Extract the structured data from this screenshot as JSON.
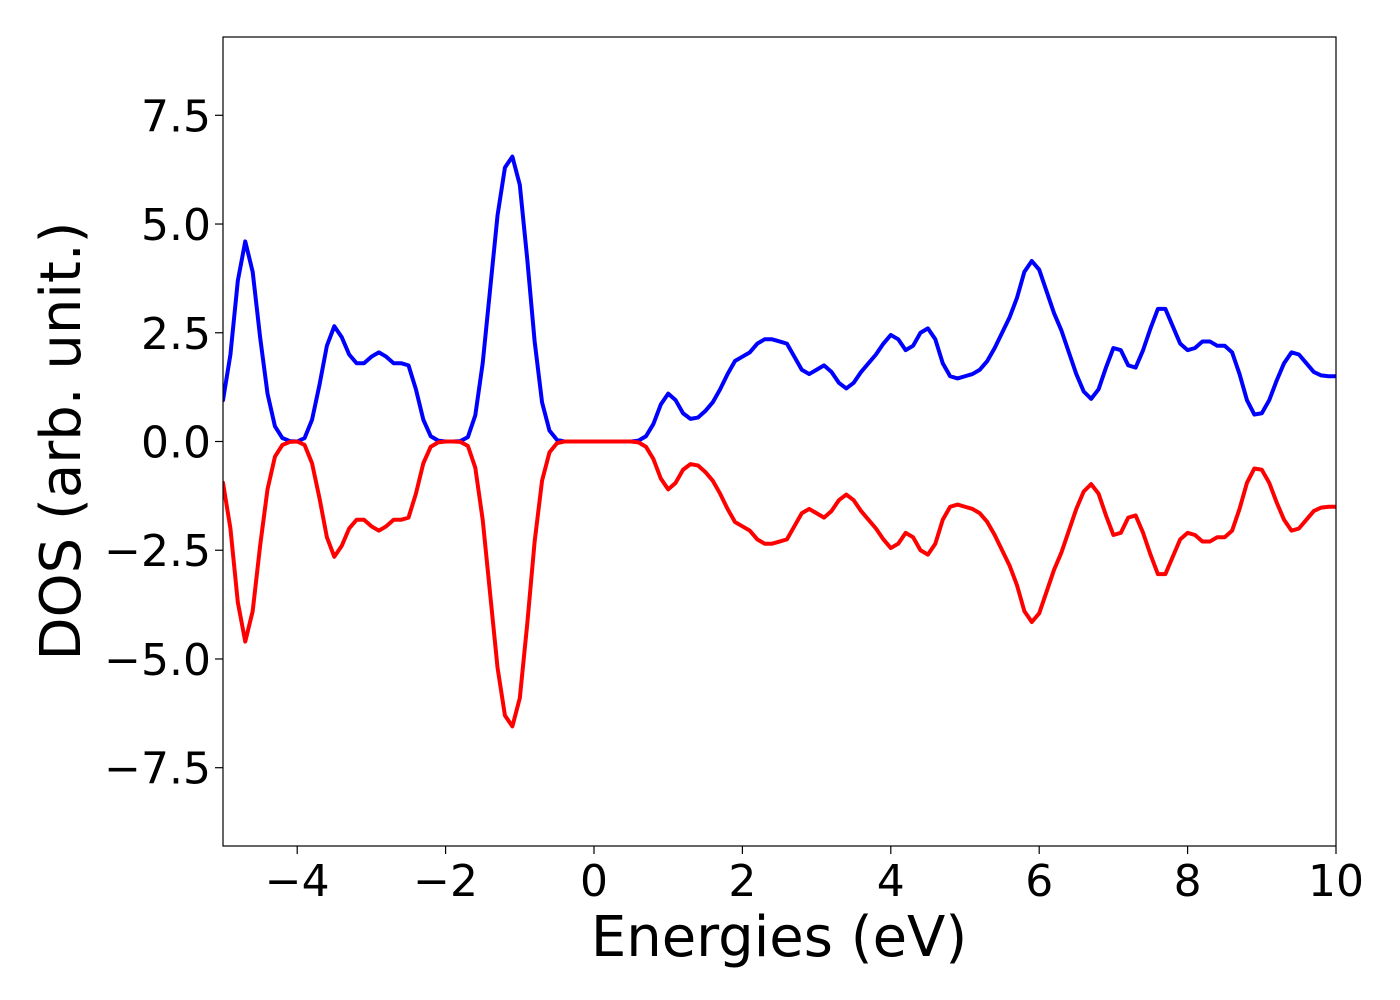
{
  "chart_data": {
    "type": "line",
    "title": "",
    "xlabel": "Energies (eV)",
    "ylabel": "DOS (arb. unit.)",
    "xlim": [
      -5,
      10
    ],
    "ylim": [
      -9.3,
      9.3
    ],
    "grid": false,
    "legend": "none",
    "x_ticks": [
      -4,
      -2,
      0,
      2,
      4,
      6,
      8,
      10
    ],
    "x_tick_labels": [
      "−4",
      "−2",
      "0",
      "2",
      "4",
      "6",
      "8",
      "10"
    ],
    "y_ticks": [
      -7.5,
      -5.0,
      -2.5,
      0.0,
      2.5,
      5.0,
      7.5
    ],
    "y_tick_labels": [
      "−7.5",
      "−5.0",
      "−2.5",
      "0.0",
      "2.5",
      "5.0",
      "7.5"
    ],
    "series": [
      {
        "color": "#0000ff",
        "points": [
          [
            -5.0,
            0.95
          ],
          [
            -4.9,
            2.0
          ],
          [
            -4.8,
            3.7
          ],
          [
            -4.7,
            4.6
          ],
          [
            -4.6,
            3.9
          ],
          [
            -4.5,
            2.4
          ],
          [
            -4.4,
            1.1
          ],
          [
            -4.3,
            0.35
          ],
          [
            -4.2,
            0.08
          ],
          [
            -4.1,
            0.01
          ],
          [
            -4.0,
            0.0
          ],
          [
            -3.9,
            0.08
          ],
          [
            -3.8,
            0.5
          ],
          [
            -3.7,
            1.3
          ],
          [
            -3.6,
            2.2
          ],
          [
            -3.5,
            2.65
          ],
          [
            -3.4,
            2.4
          ],
          [
            -3.3,
            2.0
          ],
          [
            -3.2,
            1.8
          ],
          [
            -3.1,
            1.8
          ],
          [
            -3.0,
            1.95
          ],
          [
            -2.9,
            2.05
          ],
          [
            -2.8,
            1.95
          ],
          [
            -2.7,
            1.8
          ],
          [
            -2.6,
            1.8
          ],
          [
            -2.5,
            1.75
          ],
          [
            -2.4,
            1.2
          ],
          [
            -2.3,
            0.5
          ],
          [
            -2.2,
            0.12
          ],
          [
            -2.1,
            0.02
          ],
          [
            -2.0,
            0.0
          ],
          [
            -1.9,
            0.0
          ],
          [
            -1.8,
            0.01
          ],
          [
            -1.7,
            0.1
          ],
          [
            -1.6,
            0.6
          ],
          [
            -1.5,
            1.8
          ],
          [
            -1.4,
            3.5
          ],
          [
            -1.3,
            5.2
          ],
          [
            -1.2,
            6.3
          ],
          [
            -1.1,
            6.55
          ],
          [
            -1.0,
            5.9
          ],
          [
            -0.9,
            4.2
          ],
          [
            -0.8,
            2.3
          ],
          [
            -0.7,
            0.9
          ],
          [
            -0.6,
            0.25
          ],
          [
            -0.5,
            0.04
          ],
          [
            -0.4,
            0.0
          ],
          [
            0.0,
            0.0
          ],
          [
            0.5,
            0.0
          ],
          [
            0.6,
            0.02
          ],
          [
            0.7,
            0.12
          ],
          [
            0.8,
            0.4
          ],
          [
            0.9,
            0.85
          ],
          [
            1.0,
            1.1
          ],
          [
            1.1,
            0.95
          ],
          [
            1.2,
            0.65
          ],
          [
            1.3,
            0.52
          ],
          [
            1.4,
            0.55
          ],
          [
            1.5,
            0.7
          ],
          [
            1.6,
            0.9
          ],
          [
            1.7,
            1.2
          ],
          [
            1.8,
            1.55
          ],
          [
            1.9,
            1.85
          ],
          [
            2.0,
            1.95
          ],
          [
            2.1,
            2.05
          ],
          [
            2.2,
            2.25
          ],
          [
            2.3,
            2.35
          ],
          [
            2.4,
            2.35
          ],
          [
            2.5,
            2.3
          ],
          [
            2.6,
            2.25
          ],
          [
            2.7,
            1.95
          ],
          [
            2.8,
            1.65
          ],
          [
            2.9,
            1.55
          ],
          [
            3.0,
            1.65
          ],
          [
            3.1,
            1.75
          ],
          [
            3.2,
            1.6
          ],
          [
            3.3,
            1.35
          ],
          [
            3.4,
            1.22
          ],
          [
            3.5,
            1.35
          ],
          [
            3.6,
            1.6
          ],
          [
            3.7,
            1.8
          ],
          [
            3.8,
            2.0
          ],
          [
            3.9,
            2.25
          ],
          [
            4.0,
            2.45
          ],
          [
            4.1,
            2.35
          ],
          [
            4.2,
            2.1
          ],
          [
            4.3,
            2.2
          ],
          [
            4.4,
            2.5
          ],
          [
            4.5,
            2.6
          ],
          [
            4.6,
            2.35
          ],
          [
            4.7,
            1.8
          ],
          [
            4.8,
            1.5
          ],
          [
            4.9,
            1.45
          ],
          [
            5.0,
            1.5
          ],
          [
            5.1,
            1.55
          ],
          [
            5.2,
            1.65
          ],
          [
            5.3,
            1.85
          ],
          [
            5.4,
            2.15
          ],
          [
            5.5,
            2.5
          ],
          [
            5.6,
            2.85
          ],
          [
            5.7,
            3.3
          ],
          [
            5.8,
            3.9
          ],
          [
            5.9,
            4.15
          ],
          [
            6.0,
            3.95
          ],
          [
            6.1,
            3.45
          ],
          [
            6.2,
            2.95
          ],
          [
            6.3,
            2.55
          ],
          [
            6.4,
            2.05
          ],
          [
            6.5,
            1.55
          ],
          [
            6.6,
            1.15
          ],
          [
            6.7,
            0.98
          ],
          [
            6.8,
            1.2
          ],
          [
            6.9,
            1.7
          ],
          [
            7.0,
            2.15
          ],
          [
            7.1,
            2.1
          ],
          [
            7.2,
            1.75
          ],
          [
            7.3,
            1.7
          ],
          [
            7.4,
            2.1
          ],
          [
            7.5,
            2.6
          ],
          [
            7.6,
            3.05
          ],
          [
            7.7,
            3.05
          ],
          [
            7.8,
            2.65
          ],
          [
            7.9,
            2.25
          ],
          [
            8.0,
            2.1
          ],
          [
            8.1,
            2.15
          ],
          [
            8.2,
            2.3
          ],
          [
            8.3,
            2.3
          ],
          [
            8.4,
            2.2
          ],
          [
            8.5,
            2.2
          ],
          [
            8.6,
            2.05
          ],
          [
            8.7,
            1.55
          ],
          [
            8.8,
            0.95
          ],
          [
            8.9,
            0.62
          ],
          [
            9.0,
            0.65
          ],
          [
            9.1,
            0.95
          ],
          [
            9.2,
            1.4
          ],
          [
            9.3,
            1.8
          ],
          [
            9.4,
            2.05
          ],
          [
            9.5,
            2.0
          ],
          [
            9.6,
            1.8
          ],
          [
            9.7,
            1.6
          ],
          [
            9.8,
            1.52
          ],
          [
            9.9,
            1.5
          ],
          [
            10.0,
            1.5
          ]
        ]
      },
      {
        "color": "#ff0000",
        "points": [
          [
            -5.0,
            -0.95
          ],
          [
            -4.9,
            -2.0
          ],
          [
            -4.8,
            -3.7
          ],
          [
            -4.7,
            -4.6
          ],
          [
            -4.6,
            -3.9
          ],
          [
            -4.5,
            -2.4
          ],
          [
            -4.4,
            -1.1
          ],
          [
            -4.3,
            -0.35
          ],
          [
            -4.2,
            -0.08
          ],
          [
            -4.1,
            -0.01
          ],
          [
            -4.0,
            0.0
          ],
          [
            -3.9,
            -0.08
          ],
          [
            -3.8,
            -0.5
          ],
          [
            -3.7,
            -1.3
          ],
          [
            -3.6,
            -2.2
          ],
          [
            -3.5,
            -2.65
          ],
          [
            -3.4,
            -2.4
          ],
          [
            -3.3,
            -2.0
          ],
          [
            -3.2,
            -1.8
          ],
          [
            -3.1,
            -1.8
          ],
          [
            -3.0,
            -1.95
          ],
          [
            -2.9,
            -2.05
          ],
          [
            -2.8,
            -1.95
          ],
          [
            -2.7,
            -1.8
          ],
          [
            -2.6,
            -1.8
          ],
          [
            -2.5,
            -1.75
          ],
          [
            -2.4,
            -1.2
          ],
          [
            -2.3,
            -0.5
          ],
          [
            -2.2,
            -0.12
          ],
          [
            -2.1,
            -0.02
          ],
          [
            -2.0,
            0.0
          ],
          [
            -1.9,
            0.0
          ],
          [
            -1.8,
            -0.01
          ],
          [
            -1.7,
            -0.1
          ],
          [
            -1.6,
            -0.6
          ],
          [
            -1.5,
            -1.8
          ],
          [
            -1.4,
            -3.5
          ],
          [
            -1.3,
            -5.2
          ],
          [
            -1.2,
            -6.3
          ],
          [
            -1.1,
            -6.55
          ],
          [
            -1.0,
            -5.9
          ],
          [
            -0.9,
            -4.2
          ],
          [
            -0.8,
            -2.3
          ],
          [
            -0.7,
            -0.9
          ],
          [
            -0.6,
            -0.25
          ],
          [
            -0.5,
            -0.04
          ],
          [
            -0.4,
            0.0
          ],
          [
            0.0,
            0.0
          ],
          [
            0.5,
            0.0
          ],
          [
            0.6,
            -0.02
          ],
          [
            0.7,
            -0.12
          ],
          [
            0.8,
            -0.4
          ],
          [
            0.9,
            -0.85
          ],
          [
            1.0,
            -1.1
          ],
          [
            1.1,
            -0.95
          ],
          [
            1.2,
            -0.65
          ],
          [
            1.3,
            -0.52
          ],
          [
            1.4,
            -0.55
          ],
          [
            1.5,
            -0.7
          ],
          [
            1.6,
            -0.9
          ],
          [
            1.7,
            -1.2
          ],
          [
            1.8,
            -1.55
          ],
          [
            1.9,
            -1.85
          ],
          [
            2.0,
            -1.95
          ],
          [
            2.1,
            -2.05
          ],
          [
            2.2,
            -2.25
          ],
          [
            2.3,
            -2.35
          ],
          [
            2.4,
            -2.35
          ],
          [
            2.5,
            -2.3
          ],
          [
            2.6,
            -2.25
          ],
          [
            2.7,
            -1.95
          ],
          [
            2.8,
            -1.65
          ],
          [
            2.9,
            -1.55
          ],
          [
            3.0,
            -1.65
          ],
          [
            3.1,
            -1.75
          ],
          [
            3.2,
            -1.6
          ],
          [
            3.3,
            -1.35
          ],
          [
            3.4,
            -1.22
          ],
          [
            3.5,
            -1.35
          ],
          [
            3.6,
            -1.6
          ],
          [
            3.7,
            -1.8
          ],
          [
            3.8,
            -2.0
          ],
          [
            3.9,
            -2.25
          ],
          [
            4.0,
            -2.45
          ],
          [
            4.1,
            -2.35
          ],
          [
            4.2,
            -2.1
          ],
          [
            4.3,
            -2.2
          ],
          [
            4.4,
            -2.5
          ],
          [
            4.5,
            -2.6
          ],
          [
            4.6,
            -2.35
          ],
          [
            4.7,
            -1.8
          ],
          [
            4.8,
            -1.5
          ],
          [
            4.9,
            -1.45
          ],
          [
            5.0,
            -1.5
          ],
          [
            5.1,
            -1.55
          ],
          [
            5.2,
            -1.65
          ],
          [
            5.3,
            -1.85
          ],
          [
            5.4,
            -2.15
          ],
          [
            5.5,
            -2.5
          ],
          [
            5.6,
            -2.85
          ],
          [
            5.7,
            -3.3
          ],
          [
            5.8,
            -3.9
          ],
          [
            5.9,
            -4.15
          ],
          [
            6.0,
            -3.95
          ],
          [
            6.1,
            -3.45
          ],
          [
            6.2,
            -2.95
          ],
          [
            6.3,
            -2.55
          ],
          [
            6.4,
            -2.05
          ],
          [
            6.5,
            -1.55
          ],
          [
            6.6,
            -1.15
          ],
          [
            6.7,
            -0.98
          ],
          [
            6.8,
            -1.2
          ],
          [
            6.9,
            -1.7
          ],
          [
            7.0,
            -2.15
          ],
          [
            7.1,
            -2.1
          ],
          [
            7.2,
            -1.75
          ],
          [
            7.3,
            -1.7
          ],
          [
            7.4,
            -2.1
          ],
          [
            7.5,
            -2.6
          ],
          [
            7.6,
            -3.05
          ],
          [
            7.7,
            -3.05
          ],
          [
            7.8,
            -2.65
          ],
          [
            7.9,
            -2.25
          ],
          [
            8.0,
            -2.1
          ],
          [
            8.1,
            -2.15
          ],
          [
            8.2,
            -2.3
          ],
          [
            8.3,
            -2.3
          ],
          [
            8.4,
            -2.2
          ],
          [
            8.5,
            -2.2
          ],
          [
            8.6,
            -2.05
          ],
          [
            8.7,
            -1.55
          ],
          [
            8.8,
            -0.95
          ],
          [
            8.9,
            -0.62
          ],
          [
            9.0,
            -0.65
          ],
          [
            9.1,
            -0.95
          ],
          [
            9.2,
            -1.4
          ],
          [
            9.3,
            -1.8
          ],
          [
            9.4,
            -2.05
          ],
          [
            9.5,
            -2.0
          ],
          [
            9.6,
            -1.8
          ],
          [
            9.7,
            -1.6
          ],
          [
            9.8,
            -1.52
          ],
          [
            9.9,
            -1.5
          ],
          [
            10.0,
            -1.5
          ]
        ]
      }
    ]
  }
}
